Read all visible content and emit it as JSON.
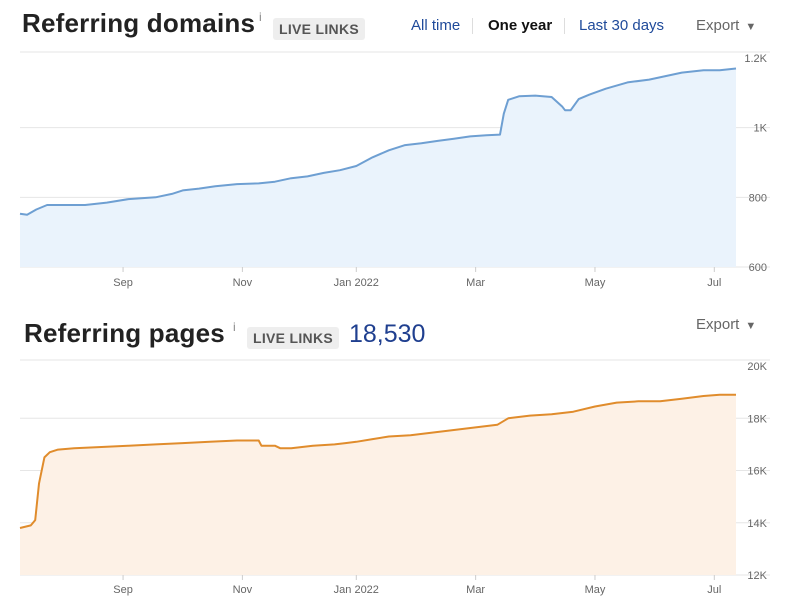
{
  "ranges": [
    "All time",
    "One year",
    "Last 30 days"
  ],
  "active_range": "One year",
  "export_label": "Export",
  "badge": "LIVE LINKS",
  "info_glyph": "i",
  "chart_data": [
    {
      "type": "area",
      "title": "Referring domains",
      "count": "",
      "color": "#6e9fd2",
      "fill": "#eaf3fc",
      "x_tick_labels": [
        "Sep",
        "Nov",
        "Jan 2022",
        "Mar",
        "May",
        "Jul"
      ],
      "y_tick_labels": [
        "1.2K",
        "1K",
        "800",
        "600"
      ],
      "ylim": [
        600,
        1200
      ],
      "x_domain": [
        0,
        12
      ],
      "x_ticks": [
        1.9,
        4.1,
        6.2,
        8.4,
        10.6,
        12.8
      ],
      "x": [
        0,
        0.13,
        0.3,
        0.5,
        0.8,
        1.2,
        1.6,
        2.0,
        2.5,
        2.8,
        3.0,
        3.3,
        3.6,
        4.0,
        4.4,
        4.7,
        5.0,
        5.3,
        5.6,
        5.9,
        6.2,
        6.5,
        6.8,
        7.1,
        7.4,
        7.7,
        8.0,
        8.3,
        8.6,
        8.85,
        8.92,
        9.0,
        9.2,
        9.5,
        9.8,
        10.0,
        10.05,
        10.15,
        10.3,
        10.5,
        10.8,
        11.2,
        11.6,
        11.9,
        12.2,
        12.6,
        12.9,
        13.2
      ],
      "values": [
        753,
        750,
        765,
        778,
        778,
        778,
        785,
        795,
        800,
        810,
        820,
        825,
        832,
        838,
        840,
        845,
        855,
        860,
        870,
        878,
        890,
        915,
        935,
        950,
        955,
        962,
        968,
        975,
        978,
        980,
        1040,
        1080,
        1090,
        1092,
        1088,
        1060,
        1050,
        1050,
        1082,
        1095,
        1112,
        1130,
        1138,
        1148,
        1158,
        1165,
        1165,
        1170
      ]
    },
    {
      "type": "area",
      "title": "Referring pages",
      "count": "18,530",
      "color": "#e08c2c",
      "fill": "#fdf1e6",
      "x_tick_labels": [
        "Sep",
        "Nov",
        "Jan 2022",
        "Mar",
        "May",
        "Jul"
      ],
      "y_tick_labels": [
        "20K",
        "18K",
        "16K",
        "14K",
        "12K"
      ],
      "ylim": [
        12000,
        20000
      ],
      "x_domain": [
        0,
        12
      ],
      "x_ticks": [
        1.9,
        4.1,
        6.2,
        8.4,
        10.6,
        12.8
      ],
      "x": [
        0,
        0.2,
        0.28,
        0.35,
        0.45,
        0.55,
        0.7,
        1.0,
        1.5,
        2.0,
        2.5,
        3.0,
        3.5,
        4.0,
        4.4,
        4.45,
        4.7,
        4.8,
        5.0,
        5.4,
        5.8,
        6.0,
        6.2,
        6.5,
        6.8,
        7.2,
        7.6,
        8.0,
        8.4,
        8.8,
        9.0,
        9.4,
        9.8,
        10.2,
        10.6,
        11.0,
        11.4,
        11.8,
        12.2,
        12.6,
        12.9,
        13.2
      ],
      "values": [
        13800,
        13900,
        14100,
        15500,
        16500,
        16700,
        16800,
        16850,
        16900,
        16950,
        17000,
        17050,
        17100,
        17150,
        17150,
        16950,
        16950,
        16850,
        16850,
        16950,
        17000,
        17050,
        17100,
        17200,
        17300,
        17350,
        17450,
        17550,
        17650,
        17750,
        18000,
        18100,
        18150,
        18250,
        18450,
        18600,
        18650,
        18650,
        18750,
        18850,
        18900,
        18900
      ]
    }
  ]
}
